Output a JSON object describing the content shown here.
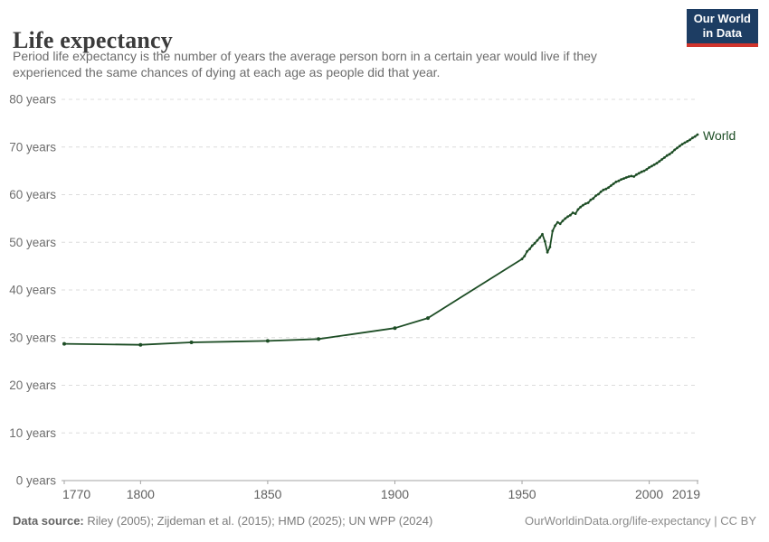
{
  "header": {
    "title": "Life expectancy",
    "subtitle": "Period life expectancy is the number of years the average person born in a certain year would live if they experienced the same chances of dying at each age as people did that year.",
    "logo": {
      "line1": "Our World",
      "line2": "in Data",
      "bg_color": "#1d3d63",
      "accent_color": "#d0342c"
    }
  },
  "footer": {
    "source_label": "Data source:",
    "source_text": " Riley (2005); Zijdeman et al. (2015); HMD (2025); UN WPP (2024)",
    "link_text": "OurWorldinData.org/life-expectancy | CC BY"
  },
  "chart_data": {
    "type": "line",
    "title": "Life expectancy",
    "xlabel": "",
    "ylabel": "",
    "xlim": [
      1770,
      2019
    ],
    "ylim": [
      0,
      80
    ],
    "grid": true,
    "legend_position": "end-of-line",
    "line_color": "#1d4d25",
    "grid_color": "#dcdcdc",
    "axis_color": "#a3a3a3",
    "yticks": [
      {
        "value": 0,
        "label": "0 years"
      },
      {
        "value": 10,
        "label": "10 years"
      },
      {
        "value": 20,
        "label": "20 years"
      },
      {
        "value": 30,
        "label": "30 years"
      },
      {
        "value": 40,
        "label": "40 years"
      },
      {
        "value": 50,
        "label": "50 years"
      },
      {
        "value": 60,
        "label": "60 years"
      },
      {
        "value": 70,
        "label": "70 years"
      },
      {
        "value": 80,
        "label": "80 years"
      }
    ],
    "xticks": [
      {
        "value": 1770,
        "label": "1770"
      },
      {
        "value": 1800,
        "label": "1800"
      },
      {
        "value": 1850,
        "label": "1850"
      },
      {
        "value": 1900,
        "label": "1900"
      },
      {
        "value": 1950,
        "label": "1950"
      },
      {
        "value": 2000,
        "label": "2000"
      },
      {
        "value": 2019,
        "label": "2019"
      }
    ],
    "series": [
      {
        "name": "World",
        "points": [
          [
            1770,
            28.7
          ],
          [
            1800,
            28.5
          ],
          [
            1820,
            29
          ],
          [
            1850,
            29.3
          ],
          [
            1870,
            29.7
          ],
          [
            1900,
            32
          ],
          [
            1913,
            34.1
          ],
          [
            1950,
            46.5
          ],
          [
            1951,
            47.1
          ],
          [
            1952,
            48.1
          ],
          [
            1953,
            48.6
          ],
          [
            1954,
            49.3
          ],
          [
            1955,
            49.8
          ],
          [
            1956,
            50.4
          ],
          [
            1957,
            51
          ],
          [
            1958,
            51.7
          ],
          [
            1959,
            50.2
          ],
          [
            1960,
            47.9
          ],
          [
            1961,
            49
          ],
          [
            1962,
            52.4
          ],
          [
            1963,
            53.5
          ],
          [
            1964,
            54.2
          ],
          [
            1965,
            53.9
          ],
          [
            1966,
            54.5
          ],
          [
            1967,
            55
          ],
          [
            1968,
            55.4
          ],
          [
            1969,
            55.7
          ],
          [
            1970,
            56.2
          ],
          [
            1971,
            56
          ],
          [
            1972,
            56.9
          ],
          [
            1973,
            57.4
          ],
          [
            1974,
            57.8
          ],
          [
            1975,
            58.1
          ],
          [
            1976,
            58.3
          ],
          [
            1977,
            58.9
          ],
          [
            1978,
            59.2
          ],
          [
            1979,
            59.8
          ],
          [
            1980,
            60.1
          ],
          [
            1981,
            60.6
          ],
          [
            1982,
            61
          ],
          [
            1983,
            61.2
          ],
          [
            1984,
            61.5
          ],
          [
            1985,
            61.9
          ],
          [
            1986,
            62.3
          ],
          [
            1987,
            62.7
          ],
          [
            1988,
            62.9
          ],
          [
            1989,
            63.2
          ],
          [
            1990,
            63.4
          ],
          [
            1991,
            63.6
          ],
          [
            1992,
            63.8
          ],
          [
            1993,
            63.9
          ],
          [
            1994,
            63.8
          ],
          [
            1995,
            64.2
          ],
          [
            1996,
            64.5
          ],
          [
            1997,
            64.8
          ],
          [
            1998,
            65
          ],
          [
            1999,
            65.3
          ],
          [
            2000,
            65.7
          ],
          [
            2001,
            66
          ],
          [
            2002,
            66.3
          ],
          [
            2003,
            66.6
          ],
          [
            2004,
            67
          ],
          [
            2005,
            67.4
          ],
          [
            2006,
            67.8
          ],
          [
            2007,
            68.2
          ],
          [
            2008,
            68.5
          ],
          [
            2009,
            68.9
          ],
          [
            2010,
            69.4
          ],
          [
            2011,
            69.8
          ],
          [
            2012,
            70.2
          ],
          [
            2013,
            70.6
          ],
          [
            2014,
            70.9
          ],
          [
            2015,
            71.2
          ],
          [
            2016,
            71.5
          ],
          [
            2017,
            71.9
          ],
          [
            2018,
            72.2
          ],
          [
            2019,
            72.6
          ]
        ]
      }
    ]
  }
}
